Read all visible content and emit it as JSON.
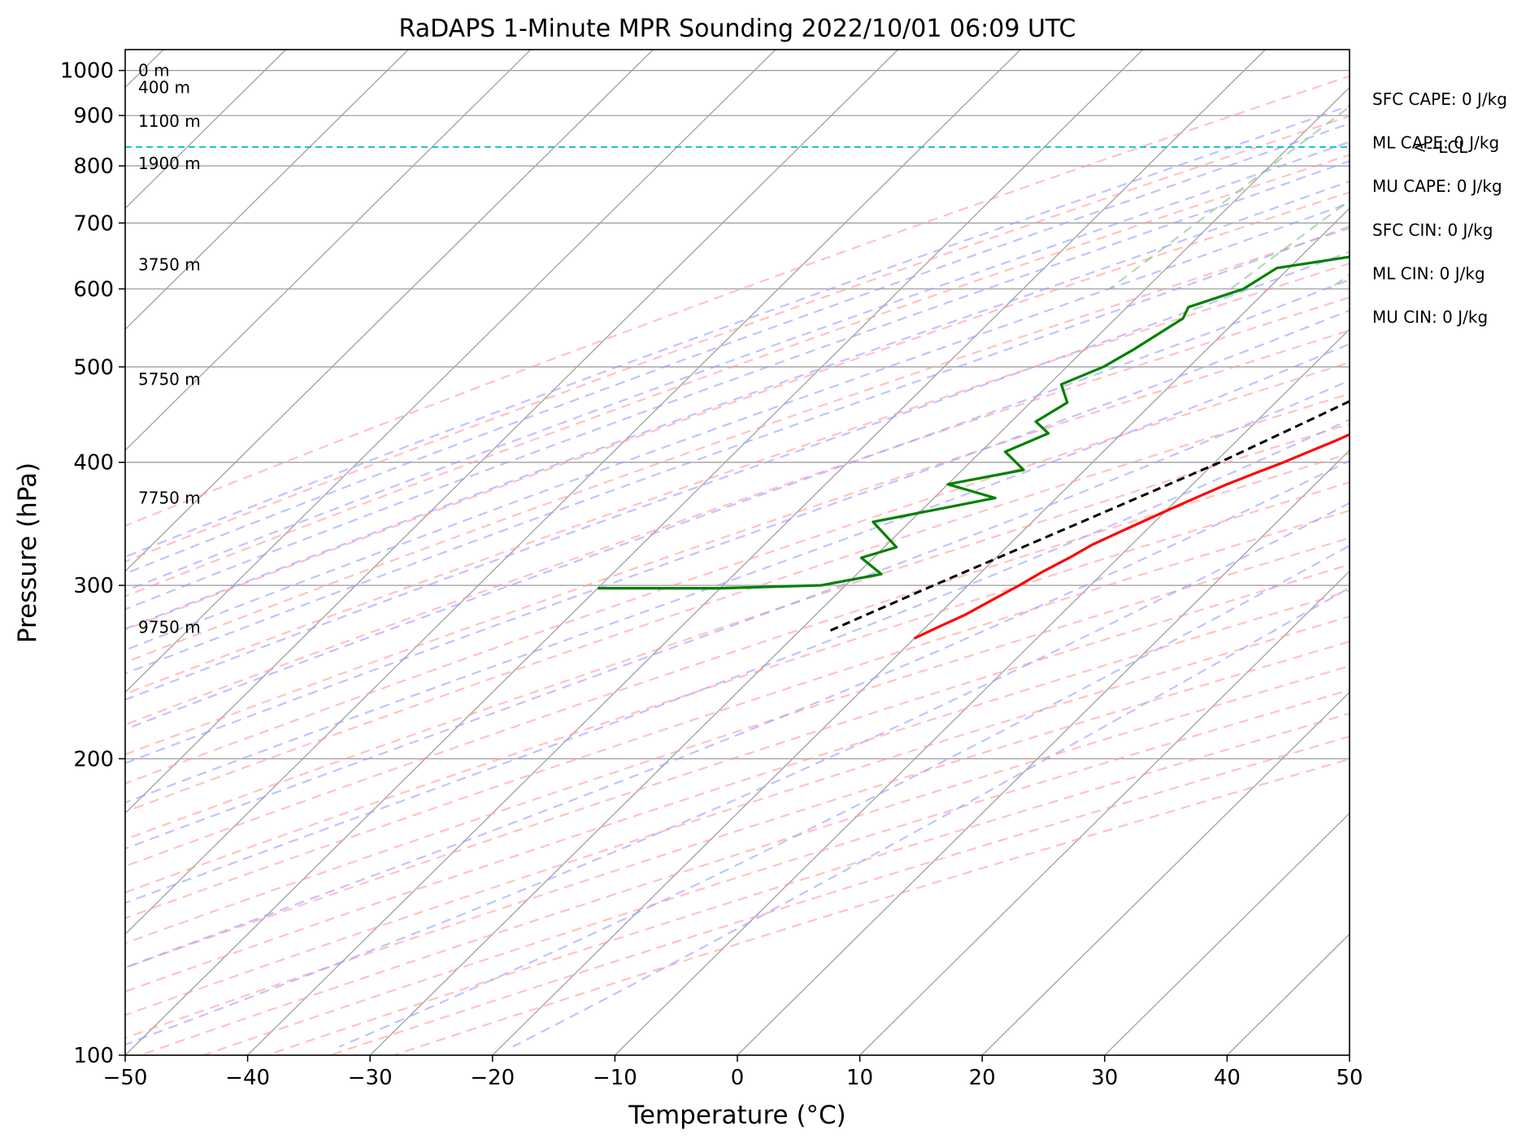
{
  "chart_data": {
    "type": "line",
    "title": "RaDAPS 1-Minute MPR Sounding 2022/10/01 06:09 UTC",
    "xlabel": "Temperature (°C)",
    "ylabel": "Pressure (hPa)",
    "xlim": [
      -50,
      50
    ],
    "ylim": [
      1050,
      100
    ],
    "y_scale": "log",
    "grid": true,
    "x_ticks": [
      -50,
      -40,
      -30,
      -20,
      -10,
      0,
      10,
      20,
      30,
      40,
      50
    ],
    "x_tick_labels": [
      "−50",
      "−40",
      "−30",
      "−20",
      "−10",
      "0",
      "10",
      "20",
      "30",
      "40",
      "50"
    ],
    "y_ticks": [
      1000,
      900,
      800,
      700,
      600,
      500,
      400,
      300,
      200,
      100
    ],
    "y_tick_labels": [
      "1000",
      "900",
      "800",
      "700",
      "600",
      "500",
      "400",
      "300",
      "200",
      "100"
    ],
    "colors": {
      "temperature": "#ff0000",
      "dewpoint": "#008000",
      "parcel": "#000000",
      "dry_adiabats": "#ff9999",
      "moist_adiabats": "#9999ff",
      "mixing_ratio": "#80c080",
      "isotherms": "#a0a0a0",
      "isobars": "#a0a0a0",
      "lcl_line": "#17becf"
    },
    "series": [
      {
        "key": "temperature",
        "pressure": [
          265,
          272,
          280,
          290,
          300,
          310,
          320,
          330,
          340,
          350,
          360,
          370,
          380,
          390,
          400,
          410,
          420,
          440,
          450,
          460,
          470,
          480,
          500,
          520,
          540,
          560,
          580,
          600,
          620,
          640,
          660,
          680,
          700,
          720,
          740,
          760,
          780,
          800,
          810,
          820,
          830,
          840,
          850,
          860,
          880,
          900,
          920,
          940,
          960,
          980,
          990
        ],
        "values": [
          -20.0,
          -19.0,
          -17.8,
          -16.8,
          -15.8,
          -15.0,
          -14.0,
          -13.2,
          -12.0,
          -10.8,
          -9.6,
          -8.4,
          -7.2,
          -5.8,
          -4.4,
          -3.2,
          -2.0,
          0.0,
          1.0,
          1.8,
          3.0,
          4.4,
          6.8,
          8.6,
          9.8,
          11.4,
          13.0,
          14.2,
          15.6,
          16.8,
          17.6,
          18.8,
          19.6,
          20.4,
          21.0,
          21.6,
          22.0,
          22.2,
          22.6,
          22.7,
          23.1,
          22.8,
          22.7,
          22.6,
          22.5,
          22.4,
          22.3,
          22.1,
          21.9,
          21.1,
          20.1
        ]
      },
      {
        "key": "dewpoint",
        "pressure": [
          298,
          298,
          300,
          308,
          320,
          328,
          348,
          368,
          380,
          393,
          410,
          428,
          440,
          460,
          480,
          500,
          520,
          560,
          575,
          600,
          630,
          650,
          680,
          700,
          740,
          760,
          785,
          800,
          820,
          850,
          880,
          893,
          910,
          930,
          950,
          965,
          985
        ],
        "values": [
          -50.0,
          -40.0,
          -32.0,
          -28.0,
          -31.0,
          -29.0,
          -33.0,
          -25.0,
          -30.0,
          -25.0,
          -28.0,
          -26.0,
          -28.0,
          -27.0,
          -29.0,
          -27.0,
          -26.0,
          -24.5,
          -25.0,
          -22.0,
          -21.0,
          -15.0,
          -17.0,
          -17.5,
          -13.5,
          -13.0,
          -6.0,
          -2.0,
          2.0,
          10.0,
          18.0,
          22.0,
          21.0,
          20.0,
          20.5,
          20.0,
          20.0
        ]
      },
      {
        "key": "parcel",
        "pressure": [
          270,
          300,
          350,
          400,
          450,
          500,
          550,
          600,
          650,
          700,
          750,
          800,
          836,
          860,
          900,
          950,
          990
        ],
        "values": [
          -27.5,
          -22.8,
          -15.7,
          -9.6,
          -5.0,
          -1.0,
          2.6,
          5.6,
          8.6,
          11.4,
          14.0,
          16.2,
          17.4,
          18.3,
          19.4,
          20.1,
          20.2
        ]
      }
    ],
    "lcl_pressure": 836,
    "lcl_label": "<--LCL",
    "height_labels": [
      {
        "text": "9750 m",
        "pressure": 272
      },
      {
        "text": "7750 m",
        "pressure": 368
      },
      {
        "text": "5750 m",
        "pressure": 486
      },
      {
        "text": "3750 m",
        "pressure": 635
      },
      {
        "text": "1900 m",
        "pressure": 805
      },
      {
        "text": "1100 m",
        "pressure": 888
      },
      {
        "text": "400 m",
        "pressure": 961
      },
      {
        "text": "0 m",
        "pressure": 1000
      }
    ],
    "indices": [
      "SFC CAPE: 0 J/kg",
      "ML CAPE: 0 J/kg",
      "MU CAPE: 0 J/kg",
      "SFC CIN: 0 J/kg",
      "ML CIN: 0 J/kg",
      "MU CIN: 0 J/kg"
    ]
  }
}
